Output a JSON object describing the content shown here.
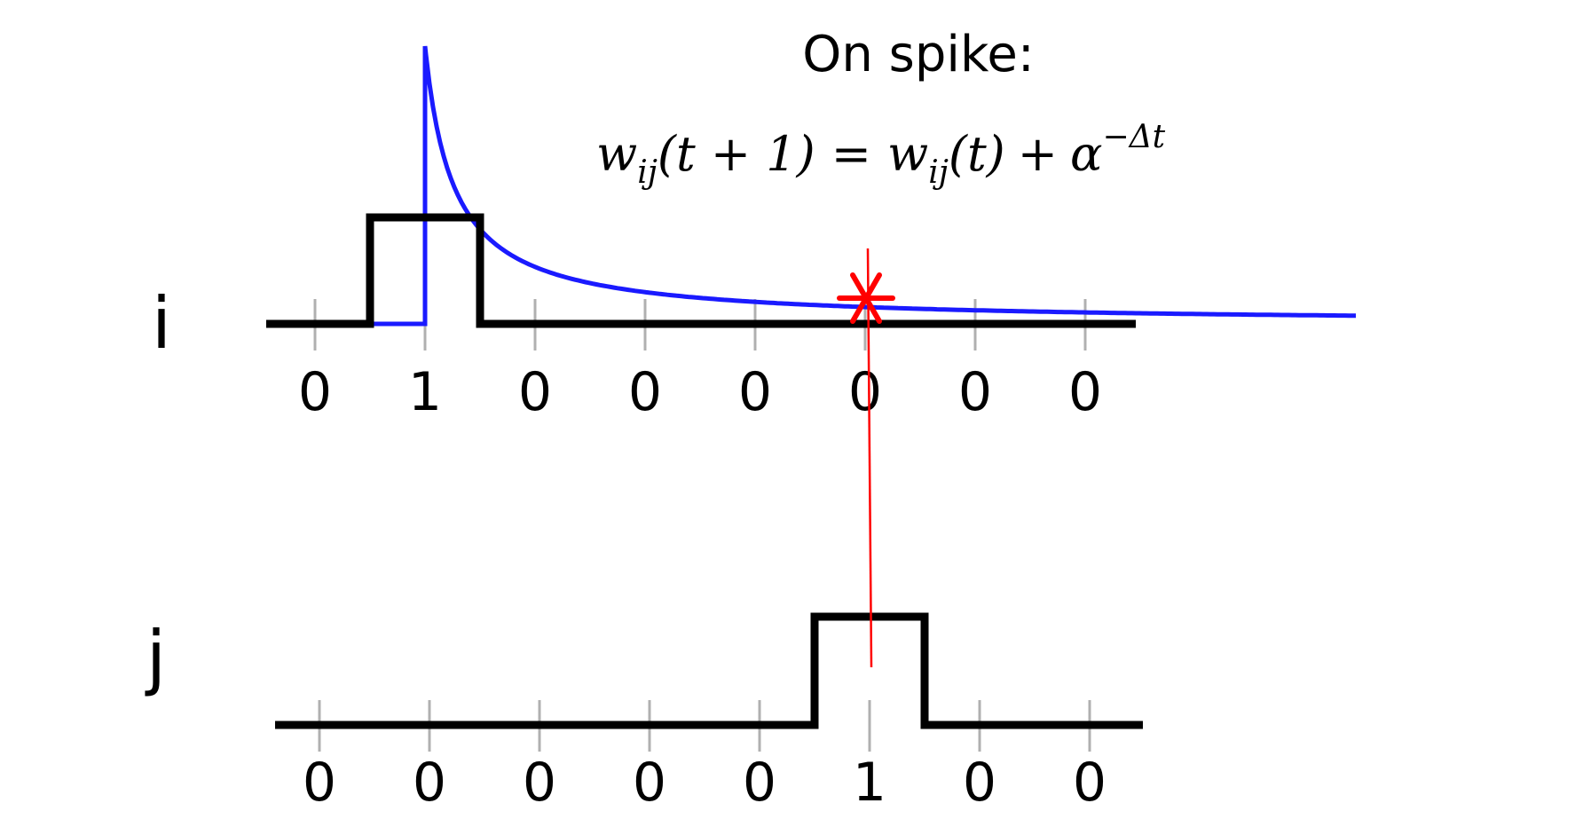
{
  "title": "On spike:",
  "equation": {
    "lhs_w": "w",
    "lhs_sub": "ij",
    "lhs_arg": "(t + 1)",
    "equals": "=",
    "rhs_w": "w",
    "rhs_sub": "ij",
    "rhs_arg": "(t)",
    "plus": "+",
    "alpha": "α",
    "exponent": "−Δt"
  },
  "neuron_i": {
    "label": "i",
    "spikes": [
      "0",
      "1",
      "0",
      "0",
      "0",
      "0",
      "0",
      "0"
    ],
    "spike_index": 1
  },
  "neuron_j": {
    "label": "j",
    "spikes": [
      "0",
      "0",
      "0",
      "0",
      "0",
      "1",
      "0",
      "0"
    ],
    "spike_index": 5
  },
  "colors": {
    "signal": "#000000",
    "trace": "#1a1aff",
    "marker": "#ff0000",
    "tick": "#b0b0b0"
  }
}
